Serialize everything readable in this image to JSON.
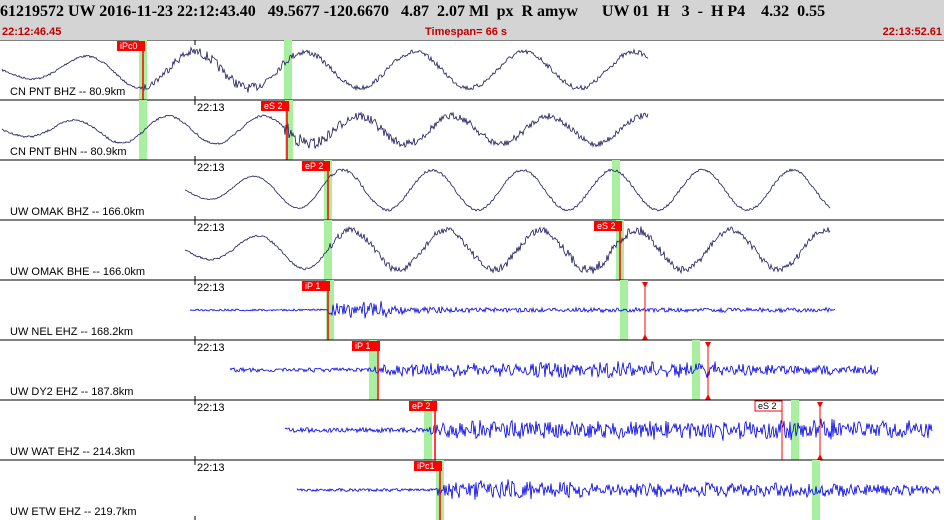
{
  "header": {
    "title": "61219572 UW 2016-11-23 22:12:43.40   49.5677 -120.6670   4.87  2.07 Ml  px  R amyw      UW 01  H   3  -  H P4    4.32  0.55",
    "start_time": "22:12:46.45",
    "timespan": "Timespan=  66 s",
    "end_time": "22:13:52.61"
  },
  "colors": {
    "header_bg": "#d4d4d4",
    "pick_red": "#ff0000",
    "pick_window": "#a8f0a0",
    "trace_broadband": "#1c1a5e",
    "trace_short_period": "#0000ee"
  },
  "traces": [
    {
      "label": "CN PNT BHZ -- 80.9km",
      "tick": "",
      "pick": "iPc0",
      "pick2": ""
    },
    {
      "label": "CN PNT BHN -- 80.9km",
      "tick": "22:13",
      "pick": "eS 2",
      "pick2": ""
    },
    {
      "label": "UW OMAK BHZ -- 166.0km",
      "tick": "22:13",
      "pick": "eP 2",
      "pick2": ""
    },
    {
      "label": "UW OMAK BHE -- 166.0km",
      "tick": "22:13",
      "pick": "eS 2",
      "pick2": ""
    },
    {
      "label": "UW NEL EHZ -- 168.2km",
      "tick": "22:13",
      "pick": "iP 1",
      "pick2": ""
    },
    {
      "label": "UW DY2 EHZ -- 187.8km",
      "tick": "22:13",
      "pick": "iP 1",
      "pick2": ""
    },
    {
      "label": "UW WAT EHZ -- 214.3km",
      "tick": "22:13",
      "pick": "eP 2",
      "pick2": "eS 2"
    },
    {
      "label": "UW ETW EHZ -- 219.7km",
      "tick": "22:13",
      "pick": "iPc1",
      "pick2": ""
    }
  ]
}
